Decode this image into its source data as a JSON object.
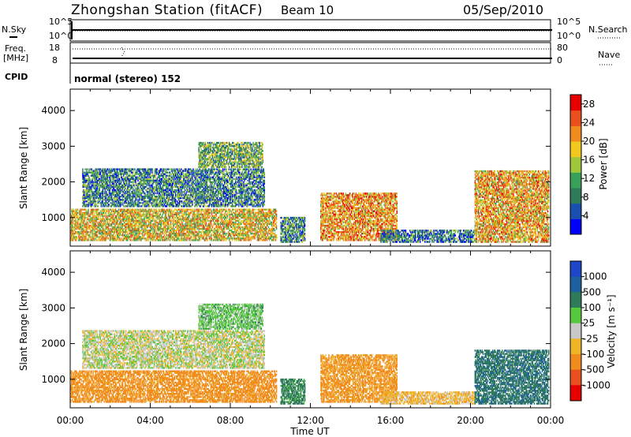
{
  "header": {
    "station": "Zhongshan Station (fitACF)",
    "beam": "Beam 10",
    "date": "05/Sep/2010"
  },
  "top_panel": {
    "left_labels": [
      "N.Sky",
      "Freq.",
      "[MHz]",
      "CPID"
    ],
    "right_labels": [
      "N.Search",
      "Nave"
    ],
    "left_ticks_upper": [
      "10^5",
      "10^0"
    ],
    "right_ticks_upper": [
      "10^5",
      "10^0"
    ],
    "left_ticks_lower": [
      "18",
      "8"
    ],
    "right_ticks_lower": [
      "80",
      "0"
    ],
    "cpid_text": "normal (stereo) 152"
  },
  "colors": {
    "power_scale": [
      "#0000ff",
      "#1a4fb0",
      "#2f7a5a",
      "#39a05a",
      "#a0c63c",
      "#f0c81e",
      "#f08c1e",
      "#e8501e",
      "#e60000"
    ],
    "velocity_scale": [
      "#1e46c8",
      "#1e5fa0",
      "#2f7a5a",
      "#55c83c",
      "#c8c8c8",
      "#f0b428",
      "#f08c1e",
      "#e8501e",
      "#e60000"
    ]
  },
  "chart_data": [
    {
      "type": "heatmap",
      "name": "power-panel",
      "ylabel": "Slant Range [km]",
      "yticks": [
        "1000",
        "2000",
        "3000",
        "4000"
      ],
      "ylim": [
        200,
        4600
      ],
      "xlim_hours": [
        0,
        24
      ],
      "colorbar_label": "Power [dB]",
      "colorbar_ticks": [
        "4",
        "8",
        "12",
        "16",
        "20",
        "24",
        "28"
      ],
      "colorbar_range": [
        0,
        30
      ],
      "regions": [
        {
          "t0": 0.0,
          "t1": 10.3,
          "r0": 350,
          "r1": 1250,
          "value": 18
        },
        {
          "t0": 0.6,
          "t1": 9.7,
          "r0": 1300,
          "r1": 2350,
          "value": 9
        },
        {
          "t0": 6.4,
          "t1": 9.6,
          "r0": 2400,
          "r1": 3100,
          "value": 12
        },
        {
          "t0": 10.5,
          "t1": 11.7,
          "r0": 300,
          "r1": 1000,
          "value": 10
        },
        {
          "t0": 12.5,
          "t1": 16.3,
          "r0": 350,
          "r1": 1700,
          "value": 21
        },
        {
          "t0": 15.5,
          "t1": 20.2,
          "r0": 300,
          "r1": 650,
          "value": 8
        },
        {
          "t0": 20.2,
          "t1": 23.9,
          "r0": 300,
          "r1": 2300,
          "value": 20
        }
      ]
    },
    {
      "type": "heatmap",
      "name": "velocity-panel",
      "ylabel": "Slant Range [km]",
      "yticks": [
        "1000",
        "2000",
        "3000",
        "4000"
      ],
      "ylim": [
        200,
        4600
      ],
      "xlim_hours": [
        0,
        24
      ],
      "xticks": [
        "00:00",
        "04:00",
        "08:00",
        "12:00",
        "16:00",
        "20:00",
        "00:00"
      ],
      "xlabel": "Time UT",
      "colorbar_label": "Velocity [m s⁻¹]",
      "colorbar_ticks": [
        "1000",
        "500",
        "100",
        "25",
        "-25",
        "-100",
        "-500",
        "-1000"
      ],
      "regions": [
        {
          "t0": 0.0,
          "t1": 10.3,
          "r0": 350,
          "r1": 1250,
          "value": -200
        },
        {
          "t0": 0.6,
          "t1": 9.7,
          "r0": 1300,
          "r1": 2350,
          "value": 0
        },
        {
          "t0": 6.4,
          "t1": 9.6,
          "r0": 2400,
          "r1": 3100,
          "value": 60
        },
        {
          "t0": 10.5,
          "t1": 11.7,
          "r0": 300,
          "r1": 1000,
          "value": 200
        },
        {
          "t0": 12.5,
          "t1": 16.3,
          "r0": 350,
          "r1": 1700,
          "value": -150
        },
        {
          "t0": 15.5,
          "t1": 20.2,
          "r0": 300,
          "r1": 650,
          "value": -60
        },
        {
          "t0": 20.2,
          "t1": 23.9,
          "r0": 300,
          "r1": 1800,
          "value": 400
        }
      ]
    }
  ]
}
